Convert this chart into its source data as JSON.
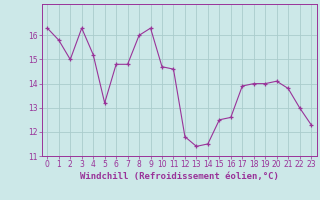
{
  "x": [
    0,
    1,
    2,
    3,
    4,
    5,
    6,
    7,
    8,
    9,
    10,
    11,
    12,
    13,
    14,
    15,
    16,
    17,
    18,
    19,
    20,
    21,
    22,
    23
  ],
  "y": [
    16.3,
    15.8,
    15.0,
    16.3,
    15.2,
    13.2,
    14.8,
    14.8,
    16.0,
    16.3,
    14.7,
    14.6,
    11.8,
    11.4,
    11.5,
    12.5,
    12.6,
    13.9,
    14.0,
    14.0,
    14.1,
    13.8,
    13.0,
    12.3
  ],
  "line_color": "#993399",
  "marker": "+",
  "bg_color": "#cce8e8",
  "grid_color": "#aacccc",
  "axis_color": "#993399",
  "xlabel": "Windchill (Refroidissement éolien,°C)",
  "ylim": [
    11,
    17
  ],
  "xlim": [
    -0.5,
    23.5
  ],
  "yticks": [
    11,
    12,
    13,
    14,
    15,
    16
  ],
  "xticks": [
    0,
    1,
    2,
    3,
    4,
    5,
    6,
    7,
    8,
    9,
    10,
    11,
    12,
    13,
    14,
    15,
    16,
    17,
    18,
    19,
    20,
    21,
    22,
    23
  ],
  "tick_fontsize": 5.5,
  "label_fontsize": 6.5
}
